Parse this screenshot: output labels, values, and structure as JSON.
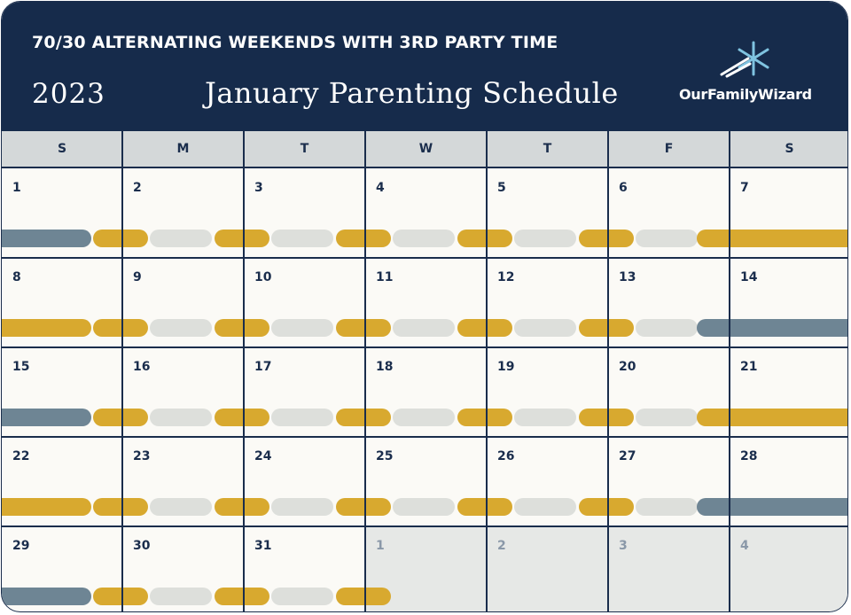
{
  "header": {
    "subtitle": "70/30 ALTERNATING WEEKENDS WITH 3RD PARTY TIME",
    "year": "2023",
    "title": "January Parenting Schedule",
    "brand": "OurFamilyWizard"
  },
  "colors": {
    "navy": "#162b4b",
    "parent_a_gold": "#d8a92f",
    "parent_b_slate": "#6e8594",
    "third_party_gray": "#dddfdb",
    "other_month_bg": "#e6e8e6"
  },
  "weekdays": [
    "S",
    "M",
    "T",
    "W",
    "T",
    "F",
    "S"
  ],
  "weeks": [
    {
      "days": [
        "1",
        "2",
        "3",
        "4",
        "5",
        "6",
        "7"
      ],
      "other": [
        false,
        false,
        false,
        false,
        false,
        false,
        false
      ]
    },
    {
      "days": [
        "8",
        "9",
        "10",
        "11",
        "12",
        "13",
        "14"
      ],
      "other": [
        false,
        false,
        false,
        false,
        false,
        false,
        false
      ]
    },
    {
      "days": [
        "15",
        "16",
        "17",
        "18",
        "19",
        "20",
        "21"
      ],
      "other": [
        false,
        false,
        false,
        false,
        false,
        false,
        false
      ]
    },
    {
      "days": [
        "22",
        "23",
        "24",
        "25",
        "26",
        "27",
        "28"
      ],
      "other": [
        false,
        false,
        false,
        false,
        false,
        false,
        false
      ]
    },
    {
      "days": [
        "29",
        "30",
        "31",
        "1",
        "2",
        "3",
        "4"
      ],
      "other": [
        false,
        false,
        false,
        true,
        true,
        true,
        true
      ]
    }
  ],
  "schedule": [
    [
      "slate",
      "gold|gray",
      "gold|gray",
      "gold|gray",
      "gold|gray",
      "gold|gray",
      "gold"
    ],
    [
      "gold",
      "gold|gray",
      "gold|gray",
      "gold|gray",
      "gold|gray",
      "gold|gray",
      "slate"
    ],
    [
      "slate",
      "gold|gray",
      "gold|gray",
      "gold|gray",
      "gold|gray",
      "gold|gray",
      "gold"
    ],
    [
      "gold",
      "gold|gray",
      "gold|gray",
      "gold|gray",
      "gold|gray",
      "gold|gray",
      "slate"
    ],
    [
      "slate",
      "gold|gray",
      "gold|gray",
      "gold-half",
      "",
      "",
      ""
    ]
  ]
}
